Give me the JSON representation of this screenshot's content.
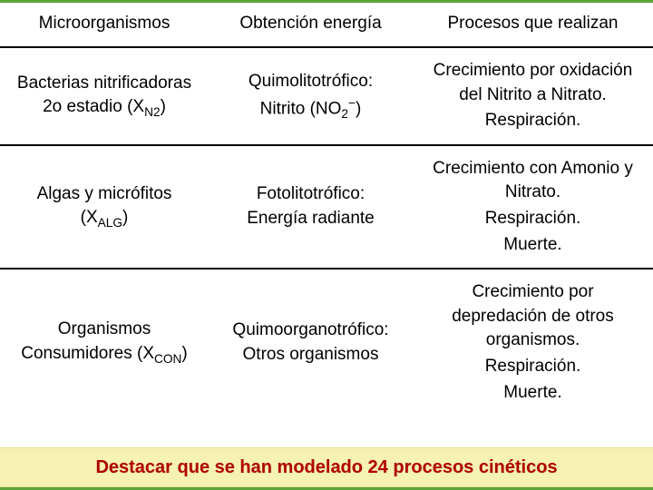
{
  "table": {
    "headers": [
      "Microorganismos",
      "Obtención energía",
      "Procesos que realizan"
    ],
    "rows": [
      {
        "organism": {
          "lead": "Bacterias nitrificadoras 2o estadio (X",
          "sub": "N2",
          "tail": ")"
        },
        "energy": {
          "line1": "Quimolitotrófico:",
          "line2_pre": "Nitrito (NO",
          "line2_sub": "2",
          "line2_sup": "−",
          "line2_post": ")"
        },
        "processes": [
          "Crecimiento por oxidación del Nitrito a Nitrato.",
          "Respiración."
        ]
      },
      {
        "organism": {
          "lead": "Algas y micrófitos (X",
          "sub": "ALG",
          "tail": ")"
        },
        "energy": {
          "line1": "Fotolitotrófico:",
          "line2": "Energía radiante"
        },
        "processes": [
          "Crecimiento con Amonio y Nitrato.",
          "Respiración.",
          "Muerte."
        ]
      },
      {
        "organism": {
          "lead": "Organismos Consumidores (X",
          "sub": "CON",
          "tail": ")"
        },
        "energy": {
          "line1": "Quimoorganotrófico:",
          "line2": "Otros organismos"
        },
        "processes": [
          "Crecimiento por depredación de otros organismos.",
          "Respiración.",
          "Muerte."
        ]
      }
    ]
  },
  "footer": "Destacar que se han modelado 24 procesos cinéticos",
  "colors": {
    "frame_border": "#5aa43a",
    "row_border": "#000000",
    "footer_bg": "#f6f2b4",
    "footer_text": "#b00000",
    "page_bg": "#ffffff"
  }
}
